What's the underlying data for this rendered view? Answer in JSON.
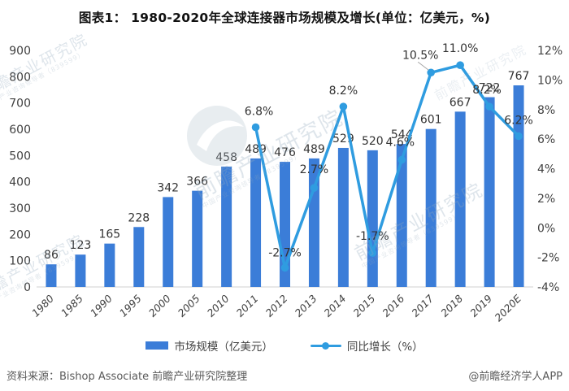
{
  "title": "图表1： 1980-2020年全球连接器市场规模及增长(单位：亿美元，%)",
  "chart_data": {
    "type": "combo-bar-line",
    "categories": [
      "1980",
      "1985",
      "1990",
      "1995",
      "2000",
      "2005",
      "2010",
      "2011",
      "2012",
      "2013",
      "2014",
      "2015",
      "2016",
      "2017",
      "2018",
      "2019",
      "2020E"
    ],
    "series": [
      {
        "name": "市场规模（亿美元）",
        "type": "bar",
        "axis": "left",
        "values": [
          86,
          123,
          165,
          228,
          342,
          366,
          458,
          489,
          476,
          489,
          529,
          520,
          544,
          601,
          667,
          722,
          767
        ]
      },
      {
        "name": "同比增长（%）",
        "type": "line",
        "axis": "right",
        "values": [
          null,
          null,
          null,
          null,
          null,
          null,
          null,
          6.8,
          -2.7,
          2.7,
          8.2,
          -1.7,
          4.6,
          10.5,
          11.0,
          8.2,
          6.2
        ],
        "point_labels": [
          "",
          "",
          "",
          "",
          "",
          "",
          "",
          "6.8%",
          "-2.7%",
          "2.7%",
          "8.2%",
          "-1.7%",
          "4.6%",
          "10.5%",
          "11.0%",
          "8.2%",
          "6.2%"
        ]
      }
    ],
    "left_axis": {
      "min": 0,
      "max": 900,
      "step": 100
    },
    "right_axis": {
      "min": -4,
      "max": 12,
      "step": 2,
      "suffix": "%"
    },
    "grid": false,
    "legend_position": "bottom",
    "colors": {
      "bar": "#3B7DD8",
      "line": "#2F9CE0",
      "axis_text": "#404040",
      "baseline": "#d9d9d9"
    }
  },
  "legend": {
    "items": [
      {
        "label": "市场规模（亿美元）"
      },
      {
        "label": "同比增长（%）"
      }
    ]
  },
  "footer": {
    "source": "资料来源：Bishop Associate 前瞻产业研究院整理",
    "credit": "@前瞻经济学人APP"
  },
  "watermark": {
    "text": "前瞻产业研究院",
    "subtext": "中国产业咨询领导者（839599）"
  }
}
